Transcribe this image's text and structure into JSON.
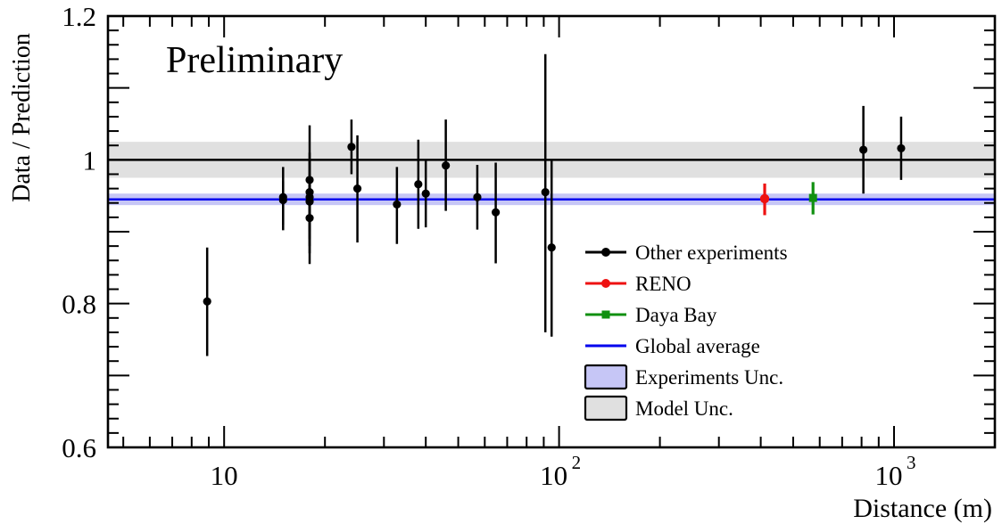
{
  "chart_data": {
    "type": "scatter",
    "title": "",
    "annotation": "Preliminary",
    "xlabel": "Distance (m)",
    "ylabel": "Data / Prediction",
    "xscale": "log",
    "xlim": [
      4.5,
      2000
    ],
    "ylim": [
      0.6,
      1.2
    ],
    "x_ticks": [
      {
        "value": 10,
        "label": "10"
      },
      {
        "value": 100,
        "label": "10",
        "exponent": "2"
      },
      {
        "value": 1000,
        "label": "10",
        "exponent": "3"
      }
    ],
    "y_ticks": [
      {
        "value": 0.6,
        "label": "0.6"
      },
      {
        "value": 0.8,
        "label": "0.8"
      },
      {
        "value": 1.0,
        "label": "1"
      },
      {
        "value": 1.2,
        "label": "1.2"
      }
    ],
    "reference_line": {
      "y": 1.0,
      "color": "#000000"
    },
    "model_band": {
      "low": 0.975,
      "high": 1.025,
      "color": "#e0e0e0"
    },
    "global_average": {
      "y": 0.945,
      "low": 0.937,
      "high": 0.953,
      "color": "#0000ee",
      "band_color": "#c6c6f6"
    },
    "legend": {
      "position": "right",
      "entries": [
        {
          "label": "Other experiments",
          "style": "point",
          "color": "#000000"
        },
        {
          "label": "RENO",
          "style": "point",
          "color": "#ee1111"
        },
        {
          "label": "Daya Bay",
          "style": "square",
          "color": "#109010"
        },
        {
          "label": "Global average",
          "style": "line",
          "color": "#0000ee"
        },
        {
          "label": "Experiments Unc.",
          "style": "box",
          "color": "#c6c6f6"
        },
        {
          "label": "Model Unc.",
          "style": "box",
          "color": "#e0e0e0"
        }
      ]
    },
    "series": [
      {
        "name": "Other experiments",
        "color": "#000000",
        "marker": "circle",
        "points": [
          {
            "x": 8.9,
            "y": 0.803,
            "lo": 0.727,
            "hi": 0.878
          },
          {
            "x": 15.0,
            "y": 0.944,
            "lo": 0.902,
            "hi": 0.99
          },
          {
            "x": 15.0,
            "y": 0.948,
            "lo": 0.91,
            "hi": 0.97
          },
          {
            "x": 18.0,
            "y": 0.972,
            "lo": 0.9,
            "hi": 1.048
          },
          {
            "x": 18.0,
            "y": 0.955,
            "lo": 0.89,
            "hi": 1.01
          },
          {
            "x": 18.0,
            "y": 0.948,
            "lo": 0.88,
            "hi": 1.0
          },
          {
            "x": 18.0,
            "y": 0.942,
            "lo": 0.87,
            "hi": 0.98
          },
          {
            "x": 18.0,
            "y": 0.919,
            "lo": 0.855,
            "hi": 0.975
          },
          {
            "x": 24.0,
            "y": 1.018,
            "lo": 0.98,
            "hi": 1.056
          },
          {
            "x": 25.0,
            "y": 0.96,
            "lo": 0.885,
            "hi": 1.034
          },
          {
            "x": 32.8,
            "y": 0.938,
            "lo": 0.883,
            "hi": 0.99
          },
          {
            "x": 38.0,
            "y": 0.966,
            "lo": 0.904,
            "hi": 1.028
          },
          {
            "x": 40.0,
            "y": 0.953,
            "lo": 0.906,
            "hi": 1.0
          },
          {
            "x": 45.9,
            "y": 0.992,
            "lo": 0.929,
            "hi": 1.056
          },
          {
            "x": 57.0,
            "y": 0.948,
            "lo": 0.903,
            "hi": 0.993
          },
          {
            "x": 64.7,
            "y": 0.927,
            "lo": 0.856,
            "hi": 0.996
          },
          {
            "x": 91.0,
            "y": 0.955,
            "lo": 0.76,
            "hi": 1.147
          },
          {
            "x": 95.0,
            "y": 0.878,
            "lo": 0.754,
            "hi": 1.0
          },
          {
            "x": 810.0,
            "y": 1.014,
            "lo": 0.953,
            "hi": 1.075
          },
          {
            "x": 1050.0,
            "y": 1.016,
            "lo": 0.972,
            "hi": 1.06
          }
        ]
      },
      {
        "name": "RENO",
        "color": "#ee1111",
        "marker": "circle",
        "points": [
          {
            "x": 411,
            "y": 0.946,
            "lo": 0.923,
            "hi": 0.967
          }
        ]
      },
      {
        "name": "Daya Bay",
        "color": "#109010",
        "marker": "square",
        "points": [
          {
            "x": 573,
            "y": 0.947,
            "lo": 0.924,
            "hi": 0.969
          }
        ]
      }
    ]
  }
}
